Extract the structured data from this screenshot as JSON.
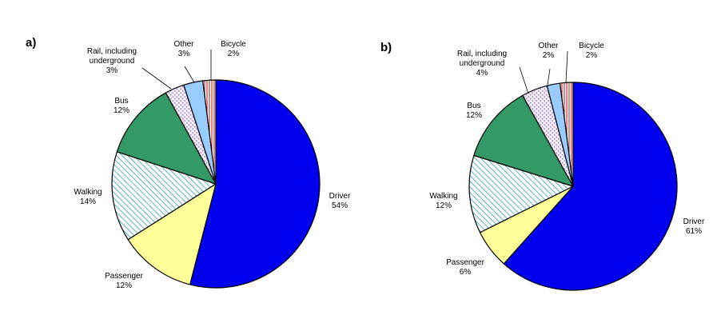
{
  "colors": {
    "Driver": "#0000ee",
    "Passenger": "#ffff99",
    "Walking": "#33a2b5",
    "Bus": "#339966",
    "Rail": "#9a86c6",
    "Other": "#99ccff",
    "Bicycle": "#cc3333"
  },
  "chart_data": [
    {
      "type": "pie",
      "panel_label": "a)",
      "slices": [
        {
          "name": "Driver",
          "value": 54,
          "label_lines": [
            "Driver",
            "54%"
          ]
        },
        {
          "name": "Passenger",
          "value": 12,
          "label_lines": [
            "Passenger",
            "12%"
          ]
        },
        {
          "name": "Walking",
          "value": 14,
          "label_lines": [
            "Walking",
            "14%"
          ]
        },
        {
          "name": "Bus",
          "value": 12,
          "label_lines": [
            "Bus",
            "12%"
          ]
        },
        {
          "name": "Rail",
          "value": 3,
          "label_lines": [
            "Rail, including",
            "underground",
            "3%"
          ]
        },
        {
          "name": "Other",
          "value": 3,
          "label_lines": [
            "Other",
            "3%"
          ]
        },
        {
          "name": "Bicycle",
          "value": 2,
          "label_lines": [
            "Bicycle",
            "2%"
          ]
        }
      ]
    },
    {
      "type": "pie",
      "panel_label": "b)",
      "slices": [
        {
          "name": "Driver",
          "value": 61,
          "label_lines": [
            "Driver",
            "61%"
          ]
        },
        {
          "name": "Passenger",
          "value": 6,
          "label_lines": [
            "Passenger",
            "6%"
          ]
        },
        {
          "name": "Walking",
          "value": 12,
          "label_lines": [
            "Walking",
            "12%"
          ]
        },
        {
          "name": "Bus",
          "value": 12,
          "label_lines": [
            "Bus",
            "12%"
          ]
        },
        {
          "name": "Rail",
          "value": 4,
          "label_lines": [
            "Rail, including",
            "underground",
            "4%"
          ]
        },
        {
          "name": "Other",
          "value": 2,
          "label_lines": [
            "Other",
            "2%"
          ]
        },
        {
          "name": "Bicycle",
          "value": 2,
          "label_lines": [
            "Bicycle",
            "2%"
          ]
        }
      ]
    }
  ]
}
